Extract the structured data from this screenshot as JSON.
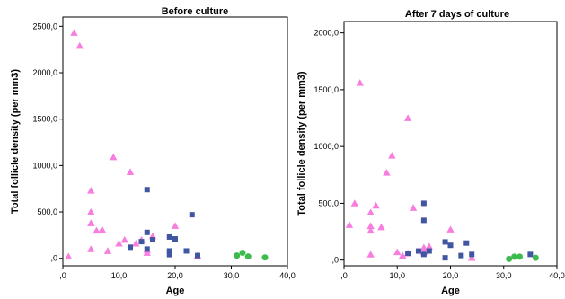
{
  "chart_data": [
    {
      "type": "scatter",
      "title": "Before culture",
      "xlabel": "Age",
      "ylabel": "Total follicle density (per mm3)",
      "xlim": [
        0,
        40
      ],
      "ylim": [
        -80,
        2600
      ],
      "xticks": [
        0,
        10,
        20,
        30,
        40
      ],
      "xtick_labels": [
        ",0",
        "10,0",
        "20,0",
        "30,0",
        "40,0"
      ],
      "yticks": [
        0,
        500,
        1000,
        1500,
        2000,
        2500
      ],
      "ytick_labels": [
        ",0",
        "500,0",
        "1000,0",
        "1500,0",
        "2000,0",
        "2500,0"
      ],
      "grid": false,
      "series": [
        {
          "marker": "triangle",
          "color": "#f77ddf",
          "points": [
            [
              2,
              2430
            ],
            [
              3,
              2290
            ],
            [
              9,
              1090
            ],
            [
              12,
              930
            ],
            [
              5,
              730
            ],
            [
              5,
              500
            ],
            [
              5,
              380
            ],
            [
              6,
              300
            ],
            [
              7,
              310
            ],
            [
              5,
              100
            ],
            [
              8,
              80
            ],
            [
              10,
              160
            ],
            [
              11,
              200
            ],
            [
              13,
              160
            ],
            [
              14,
              200
            ],
            [
              15,
              90
            ],
            [
              15,
              60
            ],
            [
              16,
              240
            ],
            [
              20,
              350
            ],
            [
              24,
              30
            ],
            [
              1,
              20
            ]
          ]
        },
        {
          "marker": "square",
          "color": "#4056a1",
          "points": [
            [
              15,
              740
            ],
            [
              23,
              470
            ],
            [
              15,
              280
            ],
            [
              16,
              200
            ],
            [
              19,
              230
            ],
            [
              20,
              210
            ],
            [
              14,
              180
            ],
            [
              12,
              120
            ],
            [
              15,
              100
            ],
            [
              19,
              80
            ],
            [
              22,
              80
            ],
            [
              19,
              40
            ],
            [
              24,
              30
            ]
          ]
        },
        {
          "marker": "circle",
          "color": "#3dbb4c",
          "points": [
            [
              31,
              30
            ],
            [
              32,
              60
            ],
            [
              33,
              20
            ],
            [
              36,
              10
            ]
          ]
        }
      ]
    },
    {
      "type": "scatter",
      "title": "After 7 days of culture",
      "xlabel": "Age",
      "ylabel": "Total follicle density (per mm3)",
      "xlim": [
        0,
        40
      ],
      "ylim": [
        -50,
        2100
      ],
      "xticks": [
        0,
        10,
        20,
        30,
        40
      ],
      "xtick_labels": [
        ",0",
        "10,0",
        "20,0",
        "30,0",
        "40,0"
      ],
      "yticks": [
        0,
        500,
        1000,
        1500,
        2000
      ],
      "ytick_labels": [
        ",0",
        "500,0",
        "1000,0",
        "1500,0",
        "2000,0"
      ],
      "grid": false,
      "series": [
        {
          "marker": "triangle",
          "color": "#f77ddf",
          "points": [
            [
              3,
              1560
            ],
            [
              12,
              1250
            ],
            [
              9,
              920
            ],
            [
              8,
              770
            ],
            [
              2,
              500
            ],
            [
              5,
              420
            ],
            [
              6,
              480
            ],
            [
              1,
              310
            ],
            [
              5,
              300
            ],
            [
              5,
              260
            ],
            [
              7,
              290
            ],
            [
              13,
              460
            ],
            [
              10,
              70
            ],
            [
              12,
              60
            ],
            [
              15,
              110
            ],
            [
              15,
              70
            ],
            [
              16,
              120
            ],
            [
              20,
              270
            ],
            [
              24,
              20
            ],
            [
              5,
              50
            ],
            [
              11,
              40
            ]
          ]
        },
        {
          "marker": "square",
          "color": "#4056a1",
          "points": [
            [
              15,
              500
            ],
            [
              15,
              350
            ],
            [
              19,
              160
            ],
            [
              20,
              130
            ],
            [
              23,
              150
            ],
            [
              14,
              80
            ],
            [
              12,
              60
            ],
            [
              16,
              80
            ],
            [
              15,
              50
            ],
            [
              22,
              40
            ],
            [
              19,
              20
            ],
            [
              24,
              50
            ],
            [
              35,
              50
            ]
          ]
        },
        {
          "marker": "circle",
          "color": "#3dbb4c",
          "points": [
            [
              31,
              10
            ],
            [
              32,
              30
            ],
            [
              33,
              30
            ],
            [
              36,
              20
            ]
          ]
        }
      ]
    }
  ]
}
